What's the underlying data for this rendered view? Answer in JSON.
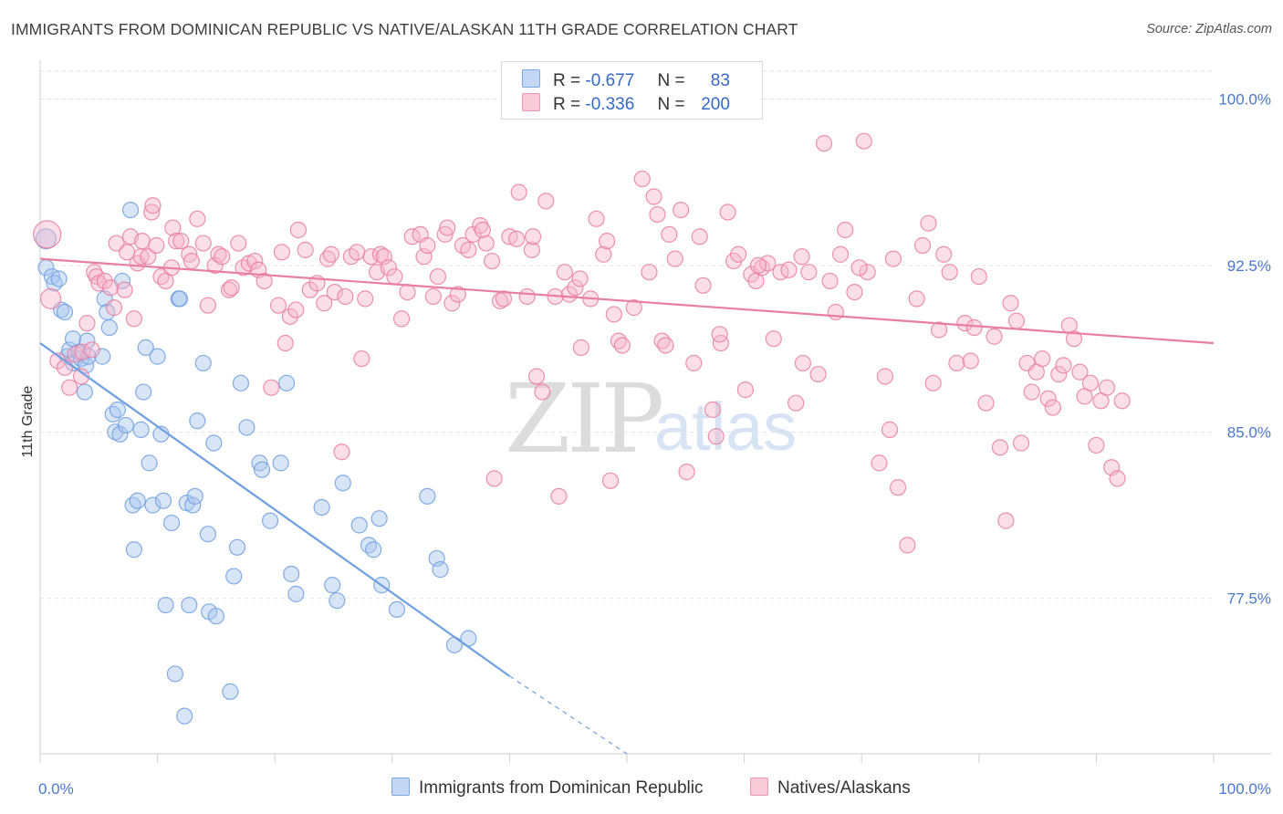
{
  "title": "IMMIGRANTS FROM DOMINICAN REPUBLIC VS NATIVE/ALASKAN 11TH GRADE CORRELATION CHART",
  "source": "Source: ZipAtlas.com",
  "watermark": {
    "zip": "ZIP",
    "atlas": "atlas"
  },
  "legend": {
    "series": [
      {
        "r_label": "R =",
        "r_value": "-0.677",
        "n_label": "N =",
        "n_value": "83",
        "color": "#a8c6ee"
      },
      {
        "r_label": "R =",
        "r_value": "-0.336",
        "n_label": "N =",
        "n_value": "200",
        "color": "#f6b6c9"
      }
    ]
  },
  "chart_data": {
    "type": "scatter",
    "title": "IMMIGRANTS FROM DOMINICAN REPUBLIC VS NATIVE/ALASKAN 11TH GRADE CORRELATION CHART",
    "xlabel": "",
    "ylabel": "11th Grade",
    "xlim": [
      0,
      100
    ],
    "ylim": [
      70.5,
      101.5
    ],
    "x_ticks": [
      "0.0%",
      "100.0%"
    ],
    "y_ticks": [
      {
        "value": 77.5,
        "label": "77.5%"
      },
      {
        "value": 85.0,
        "label": "85.0%"
      },
      {
        "value": 92.5,
        "label": "92.5%"
      },
      {
        "value": 100.0,
        "label": "100.0%"
      }
    ],
    "grid": true,
    "legend_position": "top-center",
    "series": [
      {
        "name": "Immigrants from Dominican Republic",
        "color": "#6f9fe0",
        "fill": "#a8c6ee",
        "trend": {
          "x": [
            0.0,
            40.0
          ],
          "y": [
            89.0,
            74.0
          ],
          "dashed_to": [
            50.0,
            70.5
          ]
        },
        "points": [
          [
            0.5,
            93.7
          ],
          [
            0.5,
            92.4
          ],
          [
            1.0,
            92.0
          ],
          [
            1.2,
            91.7
          ],
          [
            1.6,
            91.9
          ],
          [
            1.8,
            90.5
          ],
          [
            2.1,
            90.4
          ],
          [
            2.3,
            88.4
          ],
          [
            2.5,
            88.7
          ],
          [
            2.8,
            88.1
          ],
          [
            2.8,
            89.2
          ],
          [
            3.3,
            88.6
          ],
          [
            3.5,
            88.3
          ],
          [
            3.8,
            86.8
          ],
          [
            3.9,
            88.0
          ],
          [
            4.0,
            89.1
          ],
          [
            4.1,
            88.4
          ],
          [
            5.3,
            88.4
          ],
          [
            5.5,
            91.0
          ],
          [
            5.7,
            90.4
          ],
          [
            5.9,
            89.7
          ],
          [
            6.2,
            85.8
          ],
          [
            6.4,
            85.0
          ],
          [
            6.6,
            86.0
          ],
          [
            6.8,
            84.9
          ],
          [
            7.0,
            91.8
          ],
          [
            7.3,
            85.3
          ],
          [
            7.7,
            95.0
          ],
          [
            7.9,
            81.7
          ],
          [
            8.0,
            79.7
          ],
          [
            8.3,
            81.9
          ],
          [
            8.6,
            85.1
          ],
          [
            8.8,
            86.8
          ],
          [
            9.0,
            88.8
          ],
          [
            9.3,
            83.6
          ],
          [
            9.6,
            81.7
          ],
          [
            10.0,
            88.4
          ],
          [
            10.3,
            84.9
          ],
          [
            10.5,
            81.9
          ],
          [
            10.7,
            77.2
          ],
          [
            11.2,
            80.9
          ],
          [
            11.5,
            74.1
          ],
          [
            11.8,
            91.0
          ],
          [
            11.9,
            91.0
          ],
          [
            12.3,
            72.2
          ],
          [
            12.5,
            81.8
          ],
          [
            12.7,
            77.2
          ],
          [
            13.0,
            81.7
          ],
          [
            13.2,
            82.1
          ],
          [
            13.4,
            85.5
          ],
          [
            13.9,
            88.1
          ],
          [
            14.3,
            80.4
          ],
          [
            14.4,
            76.9
          ],
          [
            14.8,
            84.5
          ],
          [
            15.0,
            76.7
          ],
          [
            16.2,
            73.3
          ],
          [
            16.5,
            78.5
          ],
          [
            16.8,
            79.8
          ],
          [
            17.1,
            87.2
          ],
          [
            17.6,
            85.2
          ],
          [
            18.7,
            83.6
          ],
          [
            18.9,
            83.3
          ],
          [
            19.6,
            81.0
          ],
          [
            20.5,
            83.6
          ],
          [
            21.0,
            87.2
          ],
          [
            21.4,
            78.6
          ],
          [
            21.8,
            77.7
          ],
          [
            24.0,
            81.6
          ],
          [
            24.9,
            78.1
          ],
          [
            25.3,
            77.4
          ],
          [
            25.8,
            82.7
          ],
          [
            27.2,
            80.8
          ],
          [
            28.0,
            79.9
          ],
          [
            28.4,
            79.7
          ],
          [
            28.9,
            81.1
          ],
          [
            29.1,
            78.1
          ],
          [
            30.4,
            77.0
          ],
          [
            33.0,
            82.1
          ],
          [
            33.8,
            79.3
          ],
          [
            34.1,
            78.8
          ],
          [
            35.3,
            75.4
          ],
          [
            36.5,
            75.7
          ]
        ]
      },
      {
        "name": "Natives/Alaskans",
        "color": "#e87ea0",
        "fill": "#f6b6c9",
        "trend": {
          "x": [
            0.0,
            100.0
          ],
          "y": [
            92.8,
            89.0
          ]
        },
        "points": [
          [
            0.6,
            93.9
          ],
          [
            0.9,
            91.0
          ],
          [
            1.5,
            88.2
          ],
          [
            2.1,
            87.9
          ],
          [
            2.5,
            87.0
          ],
          [
            3.0,
            88.5
          ],
          [
            3.5,
            87.5
          ],
          [
            3.6,
            88.6
          ],
          [
            4.0,
            89.9
          ],
          [
            4.4,
            88.7
          ],
          [
            4.6,
            92.2
          ],
          [
            4.8,
            92.0
          ],
          [
            5.0,
            91.7
          ],
          [
            5.5,
            91.8
          ],
          [
            6.0,
            91.5
          ],
          [
            6.3,
            90.6
          ],
          [
            6.5,
            93.5
          ],
          [
            7.2,
            91.4
          ],
          [
            7.4,
            93.1
          ],
          [
            7.7,
            93.8
          ],
          [
            8.0,
            90.1
          ],
          [
            8.3,
            92.6
          ],
          [
            8.6,
            92.9
          ],
          [
            8.7,
            93.6
          ],
          [
            9.2,
            92.9
          ],
          [
            9.5,
            94.9
          ],
          [
            9.6,
            95.2
          ],
          [
            9.9,
            93.4
          ],
          [
            10.3,
            92.0
          ],
          [
            10.7,
            91.8
          ],
          [
            11.2,
            92.4
          ],
          [
            11.3,
            94.2
          ],
          [
            11.6,
            93.6
          ],
          [
            12.0,
            93.6
          ],
          [
            12.7,
            93.0
          ],
          [
            12.9,
            92.7
          ],
          [
            13.4,
            94.6
          ],
          [
            13.9,
            93.5
          ],
          [
            14.3,
            90.7
          ],
          [
            14.9,
            92.5
          ],
          [
            15.2,
            93.0
          ],
          [
            15.5,
            92.9
          ],
          [
            16.1,
            91.4
          ],
          [
            16.3,
            91.5
          ],
          [
            16.9,
            93.5
          ],
          [
            17.3,
            92.4
          ],
          [
            17.8,
            92.6
          ],
          [
            18.3,
            92.7
          ],
          [
            18.6,
            92.3
          ],
          [
            19.1,
            91.8
          ],
          [
            19.7,
            87.0
          ],
          [
            20.3,
            90.7
          ],
          [
            20.6,
            93.1
          ],
          [
            20.9,
            89.0
          ],
          [
            21.3,
            90.2
          ],
          [
            21.8,
            90.5
          ],
          [
            22.0,
            94.1
          ],
          [
            22.6,
            93.2
          ],
          [
            23.0,
            91.4
          ],
          [
            23.6,
            91.7
          ],
          [
            24.2,
            90.8
          ],
          [
            24.5,
            92.8
          ],
          [
            24.8,
            93.0
          ],
          [
            25.1,
            91.3
          ],
          [
            25.7,
            84.1
          ],
          [
            26.0,
            91.1
          ],
          [
            26.5,
            92.9
          ],
          [
            27.0,
            93.1
          ],
          [
            27.4,
            88.3
          ],
          [
            27.7,
            91.0
          ],
          [
            28.2,
            92.9
          ],
          [
            28.7,
            92.2
          ],
          [
            29.0,
            93.0
          ],
          [
            29.3,
            92.9
          ],
          [
            29.7,
            92.4
          ],
          [
            30.2,
            92.0
          ],
          [
            30.8,
            90.1
          ],
          [
            31.3,
            91.3
          ],
          [
            31.7,
            93.8
          ],
          [
            32.4,
            93.9
          ],
          [
            32.7,
            92.9
          ],
          [
            33.0,
            93.4
          ],
          [
            33.5,
            91.1
          ],
          [
            33.9,
            92.0
          ],
          [
            34.5,
            93.9
          ],
          [
            34.7,
            94.2
          ],
          [
            35.1,
            90.8
          ],
          [
            35.6,
            91.2
          ],
          [
            36.0,
            93.4
          ],
          [
            36.5,
            93.2
          ],
          [
            36.9,
            93.9
          ],
          [
            37.5,
            94.3
          ],
          [
            38.0,
            93.5
          ],
          [
            38.5,
            92.7
          ],
          [
            38.7,
            82.9
          ],
          [
            39.2,
            90.9
          ],
          [
            39.5,
            91.0
          ],
          [
            40.0,
            93.8
          ],
          [
            40.6,
            93.7
          ],
          [
            40.8,
            95.8
          ],
          [
            41.5,
            91.1
          ],
          [
            41.9,
            93.2
          ],
          [
            42.3,
            87.5
          ],
          [
            42.8,
            86.8
          ],
          [
            43.1,
            95.4
          ],
          [
            43.9,
            91.1
          ],
          [
            44.2,
            82.1
          ],
          [
            44.7,
            92.2
          ],
          [
            45.1,
            91.2
          ],
          [
            45.6,
            91.5
          ],
          [
            46.0,
            91.9
          ],
          [
            46.1,
            88.8
          ],
          [
            46.9,
            91.0
          ],
          [
            47.4,
            94.6
          ],
          [
            48.0,
            93.0
          ],
          [
            48.3,
            93.6
          ],
          [
            48.6,
            82.8
          ],
          [
            48.9,
            90.3
          ],
          [
            49.3,
            89.1
          ],
          [
            49.6,
            88.9
          ],
          [
            50.6,
            90.6
          ],
          [
            51.3,
            96.4
          ],
          [
            51.9,
            92.2
          ],
          [
            52.3,
            95.6
          ],
          [
            52.6,
            94.8
          ],
          [
            53.0,
            89.1
          ],
          [
            53.3,
            88.9
          ],
          [
            53.6,
            93.9
          ],
          [
            54.1,
            92.8
          ],
          [
            54.6,
            95.0
          ],
          [
            55.1,
            83.2
          ],
          [
            55.7,
            88.1
          ],
          [
            56.2,
            93.8
          ],
          [
            56.5,
            91.6
          ],
          [
            57.3,
            86.0
          ],
          [
            57.6,
            84.8
          ],
          [
            58.0,
            89.0
          ],
          [
            58.6,
            94.9
          ],
          [
            59.1,
            92.7
          ],
          [
            59.5,
            93.0
          ],
          [
            60.1,
            86.9
          ],
          [
            60.6,
            92.1
          ],
          [
            61.0,
            91.8
          ],
          [
            61.5,
            92.4
          ],
          [
            62.0,
            92.6
          ],
          [
            62.5,
            89.2
          ],
          [
            63.1,
            92.2
          ],
          [
            63.8,
            92.3
          ],
          [
            64.4,
            86.3
          ],
          [
            65.0,
            88.1
          ],
          [
            65.5,
            92.2
          ],
          [
            66.3,
            87.6
          ],
          [
            66.8,
            98.0
          ],
          [
            67.3,
            91.8
          ],
          [
            67.8,
            90.4
          ],
          [
            68.2,
            93.0
          ],
          [
            68.6,
            94.1
          ],
          [
            69.4,
            91.3
          ],
          [
            70.2,
            98.1
          ],
          [
            70.5,
            92.2
          ],
          [
            71.5,
            83.6
          ],
          [
            72.0,
            87.5
          ],
          [
            72.4,
            85.1
          ],
          [
            72.7,
            92.8
          ],
          [
            73.1,
            82.5
          ],
          [
            73.9,
            79.9
          ],
          [
            74.7,
            91.0
          ],
          [
            75.2,
            93.4
          ],
          [
            75.7,
            94.4
          ],
          [
            76.1,
            87.2
          ],
          [
            76.6,
            89.6
          ],
          [
            77.0,
            93.0
          ],
          [
            77.5,
            92.2
          ],
          [
            78.1,
            88.1
          ],
          [
            78.8,
            89.9
          ],
          [
            79.3,
            88.2
          ],
          [
            79.6,
            89.7
          ],
          [
            80.0,
            92.0
          ],
          [
            80.6,
            86.3
          ],
          [
            81.3,
            89.3
          ],
          [
            81.8,
            84.3
          ],
          [
            82.3,
            81.0
          ],
          [
            82.7,
            90.8
          ],
          [
            83.2,
            90.0
          ],
          [
            83.6,
            84.5
          ],
          [
            84.1,
            88.1
          ],
          [
            84.5,
            86.8
          ],
          [
            84.9,
            87.7
          ],
          [
            85.4,
            88.3
          ],
          [
            85.9,
            86.5
          ],
          [
            86.3,
            86.1
          ],
          [
            86.8,
            87.6
          ],
          [
            87.2,
            88.0
          ],
          [
            87.7,
            89.8
          ],
          [
            88.1,
            89.2
          ],
          [
            88.6,
            87.7
          ],
          [
            89.0,
            86.6
          ],
          [
            89.5,
            87.2
          ],
          [
            90.0,
            84.4
          ],
          [
            90.4,
            86.4
          ],
          [
            90.9,
            87.0
          ],
          [
            91.3,
            83.4
          ],
          [
            91.8,
            82.9
          ],
          [
            92.2,
            86.4
          ],
          [
            42.0,
            93.8
          ],
          [
            37.7,
            94.1
          ],
          [
            57.9,
            89.4
          ],
          [
            61.2,
            92.5
          ],
          [
            64.9,
            92.9
          ],
          [
            69.8,
            92.4
          ]
        ]
      }
    ]
  }
}
